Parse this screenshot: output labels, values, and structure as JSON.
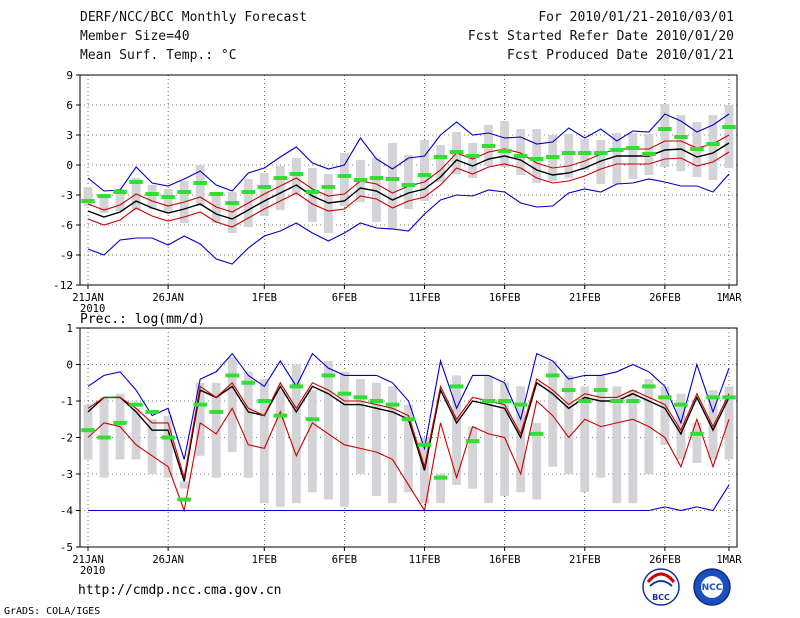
{
  "header": {
    "title": "DERF/NCC/BCC Monthly Forecast",
    "member": "Member Size=40",
    "variable1": "Mean Surf. Temp.: °C",
    "period": "For 2010/01/21-2010/03/01",
    "refer": "Fcst Started Refer Date 2010/01/20",
    "produced": "Fcst Produced Date 2010/01/21"
  },
  "footer": {
    "url": "http://cmdp.ncc.cma.gov.cn",
    "credit": "GrADS: COLA/IGES"
  },
  "logos": {
    "bcc": "BCC",
    "ncc": "NCC"
  },
  "colors": {
    "ensemble_mean": "#000000",
    "std_band": "#cc0000",
    "extremes": "#0000cc",
    "observed": "#33dd33",
    "box": "#d3d3d8",
    "grid": "#000000"
  },
  "chart_data": [
    {
      "type": "box-line",
      "title": "Mean Surf. Temp.: °C",
      "ylim": [
        -12,
        9
      ],
      "yticks": [
        -12,
        -9,
        -6,
        -3,
        0,
        3,
        6,
        9
      ],
      "xtick_labels": [
        "21JAN",
        "26JAN",
        "1FEB",
        "6FEB",
        "11FEB",
        "16FEB",
        "21FEB",
        "26FEB",
        "1MAR"
      ],
      "xtick_days": [
        0,
        5,
        11,
        16,
        21,
        26,
        31,
        36,
        40
      ],
      "year_label": "2010",
      "series": [
        {
          "name": "ensemble mean",
          "values": [
            -4.6,
            -5.2,
            -4.7,
            -3.6,
            -4.3,
            -4.8,
            -4.4,
            -3.9,
            -4.9,
            -5.4,
            -4.5,
            -3.6,
            -2.8,
            -2.0,
            -3.1,
            -3.8,
            -3.6,
            -2.3,
            -2.6,
            -3.5,
            -2.8,
            -2.4,
            -1.2,
            0.5,
            -0.1,
            0.6,
            0.9,
            0.5,
            -0.5,
            -1.0,
            -0.8,
            -0.3,
            0.4,
            0.9,
            0.9,
            0.9,
            1.5,
            1.6,
            0.8,
            1.2,
            2.2
          ]
        },
        {
          "name": "mean + std",
          "values": [
            -3.9,
            -4.5,
            -4.0,
            -2.9,
            -3.6,
            -4.1,
            -3.7,
            -3.2,
            -4.2,
            -4.7,
            -3.8,
            -2.9,
            -2.1,
            -1.3,
            -2.4,
            -3.1,
            -2.9,
            -1.6,
            -1.9,
            -2.8,
            -2.1,
            -1.7,
            -0.5,
            1.2,
            0.6,
            1.3,
            1.6,
            1.2,
            0.2,
            -0.3,
            -0.1,
            0.4,
            1.1,
            1.6,
            1.6,
            1.6,
            2.4,
            2.4,
            1.7,
            2.1,
            3.0
          ]
        },
        {
          "name": "mean - std",
          "values": [
            -5.4,
            -6.0,
            -5.5,
            -4.3,
            -5.1,
            -5.6,
            -5.2,
            -4.7,
            -5.7,
            -6.2,
            -5.3,
            -4.4,
            -3.6,
            -2.8,
            -3.9,
            -4.6,
            -4.4,
            -3.1,
            -3.4,
            -4.3,
            -3.6,
            -3.2,
            -2.0,
            -0.3,
            -0.9,
            -0.2,
            0.1,
            -0.3,
            -1.3,
            -1.8,
            -1.6,
            -1.1,
            -0.4,
            0.1,
            0.1,
            0.1,
            0.6,
            0.7,
            -0.1,
            0.3,
            1.3
          ]
        },
        {
          "name": "ensemble max",
          "values": [
            -1.3,
            -2.6,
            -2.5,
            -0.2,
            -1.8,
            -2.1,
            -1.4,
            -0.6,
            -2.0,
            -2.6,
            -0.8,
            -0.3,
            0.8,
            1.8,
            0.2,
            -0.4,
            0.0,
            2.7,
            0.6,
            -0.4,
            0.7,
            0.9,
            3.0,
            4.3,
            3.0,
            3.2,
            2.7,
            2.8,
            2.1,
            2.3,
            3.7,
            2.7,
            3.6,
            2.4,
            3.4,
            3.3,
            5.1,
            4.4,
            3.3,
            4.0,
            5.1
          ]
        },
        {
          "name": "ensemble min",
          "values": [
            -8.4,
            -9.0,
            -7.5,
            -7.3,
            -7.3,
            -8.0,
            -7.1,
            -7.9,
            -9.4,
            -9.9,
            -8.3,
            -7.1,
            -6.6,
            -5.8,
            -6.8,
            -7.6,
            -6.8,
            -5.8,
            -6.3,
            -6.4,
            -6.6,
            -4.9,
            -3.5,
            -3.0,
            -3.1,
            -2.5,
            -2.7,
            -3.8,
            -4.2,
            -4.1,
            -2.8,
            -2.4,
            -2.7,
            -1.9,
            -1.8,
            -1.4,
            -1.7,
            -2.1,
            -2.1,
            -2.7,
            -0.9
          ]
        },
        {
          "name": "observed",
          "values": [
            -3.6,
            -3.1,
            -2.7,
            -1.7,
            -2.9,
            -3.2,
            -2.7,
            -1.8,
            -2.9,
            -3.8,
            -2.7,
            -2.2,
            -1.3,
            -0.9,
            -2.7,
            -2.2,
            -1.1,
            -1.5,
            -1.3,
            -1.4,
            -2.0,
            -1.0,
            0.8,
            1.3,
            0.9,
            1.9,
            1.4,
            0.9,
            0.6,
            0.8,
            1.2,
            1.2,
            1.2,
            1.5,
            1.7,
            1.1,
            3.6,
            2.8,
            1.6,
            2.1,
            3.8
          ]
        }
      ],
      "boxes": {
        "upper": [
          -2.2,
          -3.1,
          -2.4,
          -1.3,
          -2.0,
          -2.4,
          -1.6,
          0.0,
          -2.8,
          -2.7,
          -1.4,
          -0.8,
          -0.1,
          0.7,
          -0.3,
          -0.9,
          1.2,
          0.5,
          0.7,
          2.2,
          1.0,
          2.5,
          2.0,
          3.3,
          2.2,
          4.0,
          4.4,
          3.6,
          3.6,
          3.0,
          3.1,
          2.6,
          2.5,
          3.2,
          3.2,
          3.1,
          6.1,
          5.0,
          4.3,
          5.0,
          6.0
        ],
        "lower": [
          -4.1,
          -4.8,
          -4.6,
          -4.5,
          -4.4,
          -4.8,
          -5.8,
          -4.1,
          -5.8,
          -6.8,
          -6.2,
          -5.1,
          -4.5,
          -3.0,
          -5.7,
          -6.8,
          -4.1,
          -3.7,
          -5.7,
          -6.5,
          -4.4,
          -3.6,
          -1.7,
          -0.9,
          -1.3,
          -0.1,
          -0.2,
          -1.0,
          -1.8,
          -1.6,
          -1.3,
          -0.5,
          -1.9,
          -1.9,
          -1.4,
          -1.0,
          -0.2,
          -0.6,
          -1.2,
          -1.5,
          -0.3
        ]
      }
    },
    {
      "type": "box-line",
      "title": "Prec.: log(mm/d)",
      "ylim": [
        -5,
        1
      ],
      "yticks": [
        -5,
        -4,
        -3,
        -2,
        -1,
        0,
        1
      ],
      "xtick_labels": [
        "21JAN",
        "26JAN",
        "1FEB",
        "6FEB",
        "11FEB",
        "16FEB",
        "21FEB",
        "26FEB",
        "1MAR"
      ],
      "xtick_days": [
        0,
        5,
        11,
        16,
        21,
        26,
        31,
        36,
        40
      ],
      "year_label": "2010",
      "series": [
        {
          "name": "ensemble mean",
          "values": [
            -1.3,
            -0.9,
            -0.9,
            -1.3,
            -1.8,
            -1.8,
            -3.2,
            -0.7,
            -0.9,
            -0.6,
            -1.3,
            -1.4,
            -0.6,
            -1.3,
            -0.6,
            -0.8,
            -1.1,
            -1.1,
            -1.2,
            -1.3,
            -1.5,
            -2.9,
            -0.7,
            -1.6,
            -1.0,
            -1.1,
            -1.2,
            -2.0,
            -0.5,
            -0.8,
            -1.2,
            -0.9,
            -1.0,
            -1.0,
            -0.8,
            -1.0,
            -1.2,
            -1.9,
            -0.9,
            -1.8,
            -0.9
          ]
        },
        {
          "name": "mean + std",
          "values": [
            -1.2,
            -0.9,
            -0.9,
            -1.2,
            -1.6,
            -1.6,
            -3.1,
            -0.6,
            -0.9,
            -0.5,
            -1.2,
            -1.4,
            -0.5,
            -1.2,
            -0.5,
            -0.7,
            -1.0,
            -1.0,
            -1.1,
            -1.2,
            -1.4,
            -2.8,
            -0.6,
            -1.5,
            -0.9,
            -1.0,
            -1.1,
            -1.9,
            -0.4,
            -0.7,
            -1.1,
            -0.8,
            -0.9,
            -0.9,
            -0.7,
            -0.9,
            -1.1,
            -1.8,
            -0.8,
            -1.7,
            -0.8
          ]
        },
        {
          "name": "mean - std",
          "values": [
            -2.0,
            -1.6,
            -1.7,
            -2.2,
            -2.5,
            -2.8,
            -4.0,
            -1.6,
            -1.9,
            -1.2,
            -2.2,
            -2.3,
            -1.3,
            -2.5,
            -1.6,
            -1.9,
            -2.2,
            -2.3,
            -2.4,
            -2.6,
            -3.3,
            -4.0,
            -1.6,
            -3.1,
            -1.7,
            -1.9,
            -2.0,
            -3.0,
            -1.0,
            -1.4,
            -2.0,
            -1.5,
            -1.7,
            -1.6,
            -1.5,
            -1.7,
            -2.0,
            -2.8,
            -1.5,
            -2.8,
            -1.5
          ]
        },
        {
          "name": "ensemble max",
          "values": [
            -0.6,
            -0.3,
            -0.2,
            -0.7,
            -1.4,
            -1.2,
            -2.6,
            -0.4,
            -0.2,
            0.3,
            -0.3,
            -0.6,
            0.1,
            -0.6,
            0.3,
            -0.1,
            -0.3,
            -0.3,
            -0.3,
            -0.5,
            -1.0,
            -2.3,
            0.1,
            -1.2,
            -0.3,
            -0.3,
            -0.5,
            -1.5,
            0.3,
            0.1,
            -0.4,
            -0.3,
            -0.3,
            -0.2,
            0.0,
            -0.2,
            -0.6,
            -1.6,
            0.0,
            -1.3,
            -0.1
          ]
        },
        {
          "name": "ensemble min",
          "values": [
            -4.0,
            -4.0,
            -4.0,
            -4.0,
            -4.0,
            -4.0,
            -4.0,
            -4.0,
            -4.0,
            -4.0,
            -4.0,
            -4.0,
            -4.0,
            -4.0,
            -4.0,
            -4.0,
            -4.0,
            -4.0,
            -4.0,
            -4.0,
            -4.0,
            -4.0,
            -4.0,
            -4.0,
            -4.0,
            -4.0,
            -4.0,
            -4.0,
            -4.0,
            -4.0,
            -4.0,
            -4.0,
            -4.0,
            -4.0,
            -4.0,
            -4.0,
            -3.9,
            -4.0,
            -3.9,
            -4.0,
            -3.3
          ]
        },
        {
          "name": "observed",
          "values": [
            -1.8,
            -2.0,
            -1.6,
            -1.1,
            -1.3,
            -2.0,
            -3.7,
            -1.1,
            -1.3,
            -0.3,
            -0.5,
            -1.0,
            -1.4,
            -0.6,
            -1.5,
            -0.3,
            -0.8,
            -0.9,
            -1.0,
            -1.1,
            -1.5,
            -2.2,
            -3.1,
            -0.6,
            -2.1,
            -1.0,
            -1.0,
            -1.1,
            -1.9,
            -0.3,
            -0.7,
            -1.0,
            -0.7,
            -1.0,
            -1.0,
            -0.6,
            -0.9,
            -1.1,
            -1.9,
            -0.9,
            -0.9
          ]
        }
      ],
      "boxes": {
        "upper": [
          -1.1,
          -0.9,
          -0.8,
          -1.2,
          -1.5,
          -1.4,
          -3.2,
          -0.5,
          -0.5,
          0.2,
          -0.2,
          -0.4,
          -0.7,
          0.0,
          -0.7,
          0.1,
          -0.2,
          -0.4,
          -0.5,
          -0.6,
          -1.1,
          -2.0,
          -3.0,
          -0.3,
          -1.7,
          -0.3,
          -0.5,
          -0.6,
          -1.6,
          0.1,
          -0.3,
          -0.6,
          -0.3,
          -0.6,
          -0.7,
          -0.4,
          -0.6,
          -0.8,
          -1.6,
          -0.7,
          -0.6
        ],
        "lower": [
          -2.6,
          -3.1,
          -2.6,
          -2.6,
          -3.0,
          -3.1,
          -3.4,
          -2.5,
          -3.1,
          -2.4,
          -3.1,
          -3.8,
          -3.9,
          -3.8,
          -3.5,
          -3.7,
          -3.9,
          -3.0,
          -3.6,
          -3.8,
          -3.5,
          -3.8,
          -3.8,
          -3.3,
          -3.4,
          -3.8,
          -3.6,
          -3.5,
          -3.7,
          -2.8,
          -3.0,
          -3.5,
          -3.1,
          -3.8,
          -3.8,
          -3.0,
          -2.2,
          -2.6,
          -2.7,
          -2.6,
          -2.6
        ]
      }
    }
  ]
}
